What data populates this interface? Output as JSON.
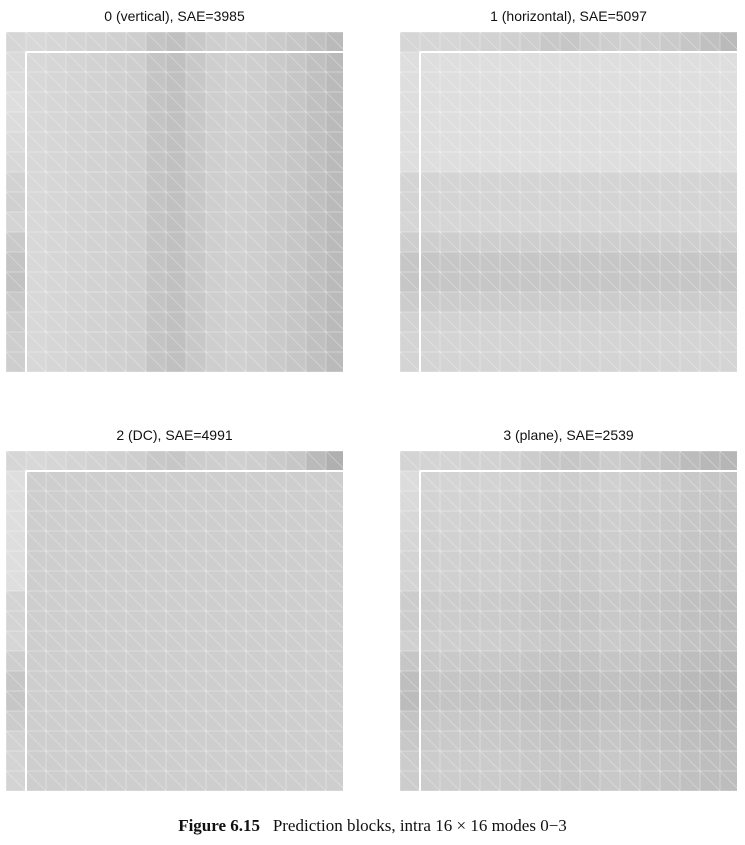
{
  "figure": {
    "caption_label": "Figure 6.15",
    "caption_text": "Prediction blocks, intra 16 × 16 modes 0−3"
  },
  "panels": [
    {
      "title": "0 (vertical), SAE=3985",
      "mode": "vertical",
      "top_row": [
        216,
        214,
        212,
        210,
        208,
        206,
        196,
        192,
        200,
        206,
        208,
        206,
        202,
        198,
        192,
        186
      ],
      "left_col": [
        218,
        220,
        222,
        220,
        218,
        216,
        210,
        208,
        212,
        202,
        196,
        194,
        200,
        204,
        206,
        206
      ],
      "corner": 214
    },
    {
      "title": "1 (horizontal), SAE=5097",
      "mode": "horizontal",
      "top_row": [
        214,
        214,
        212,
        210,
        208,
        206,
        200,
        198,
        204,
        206,
        208,
        206,
        202,
        198,
        192,
        186
      ],
      "left_col": [
        222,
        222,
        222,
        222,
        222,
        222,
        212,
        212,
        214,
        206,
        198,
        198,
        204,
        210,
        212,
        212
      ],
      "corner": 214
    },
    {
      "title": "2 (DC), SAE=4991",
      "mode": "dc",
      "top_row": [
        216,
        214,
        212,
        210,
        208,
        206,
        200,
        198,
        204,
        206,
        208,
        206,
        202,
        198,
        186,
        176
      ],
      "left_col": [
        222,
        222,
        222,
        222,
        222,
        222,
        212,
        212,
        214,
        206,
        198,
        198,
        204,
        210,
        212,
        212
      ],
      "corner": 214,
      "dc_value": 206
    },
    {
      "title": "3 (plane), SAE=2539",
      "mode": "plane",
      "top_row": [
        212,
        212,
        210,
        210,
        208,
        204,
        200,
        198,
        200,
        204,
        202,
        198,
        194,
        188,
        184,
        182
      ],
      "left_col": [
        220,
        218,
        216,
        214,
        212,
        212,
        204,
        204,
        208,
        198,
        190,
        188,
        196,
        200,
        204,
        204
      ],
      "corner": 212
    }
  ]
}
